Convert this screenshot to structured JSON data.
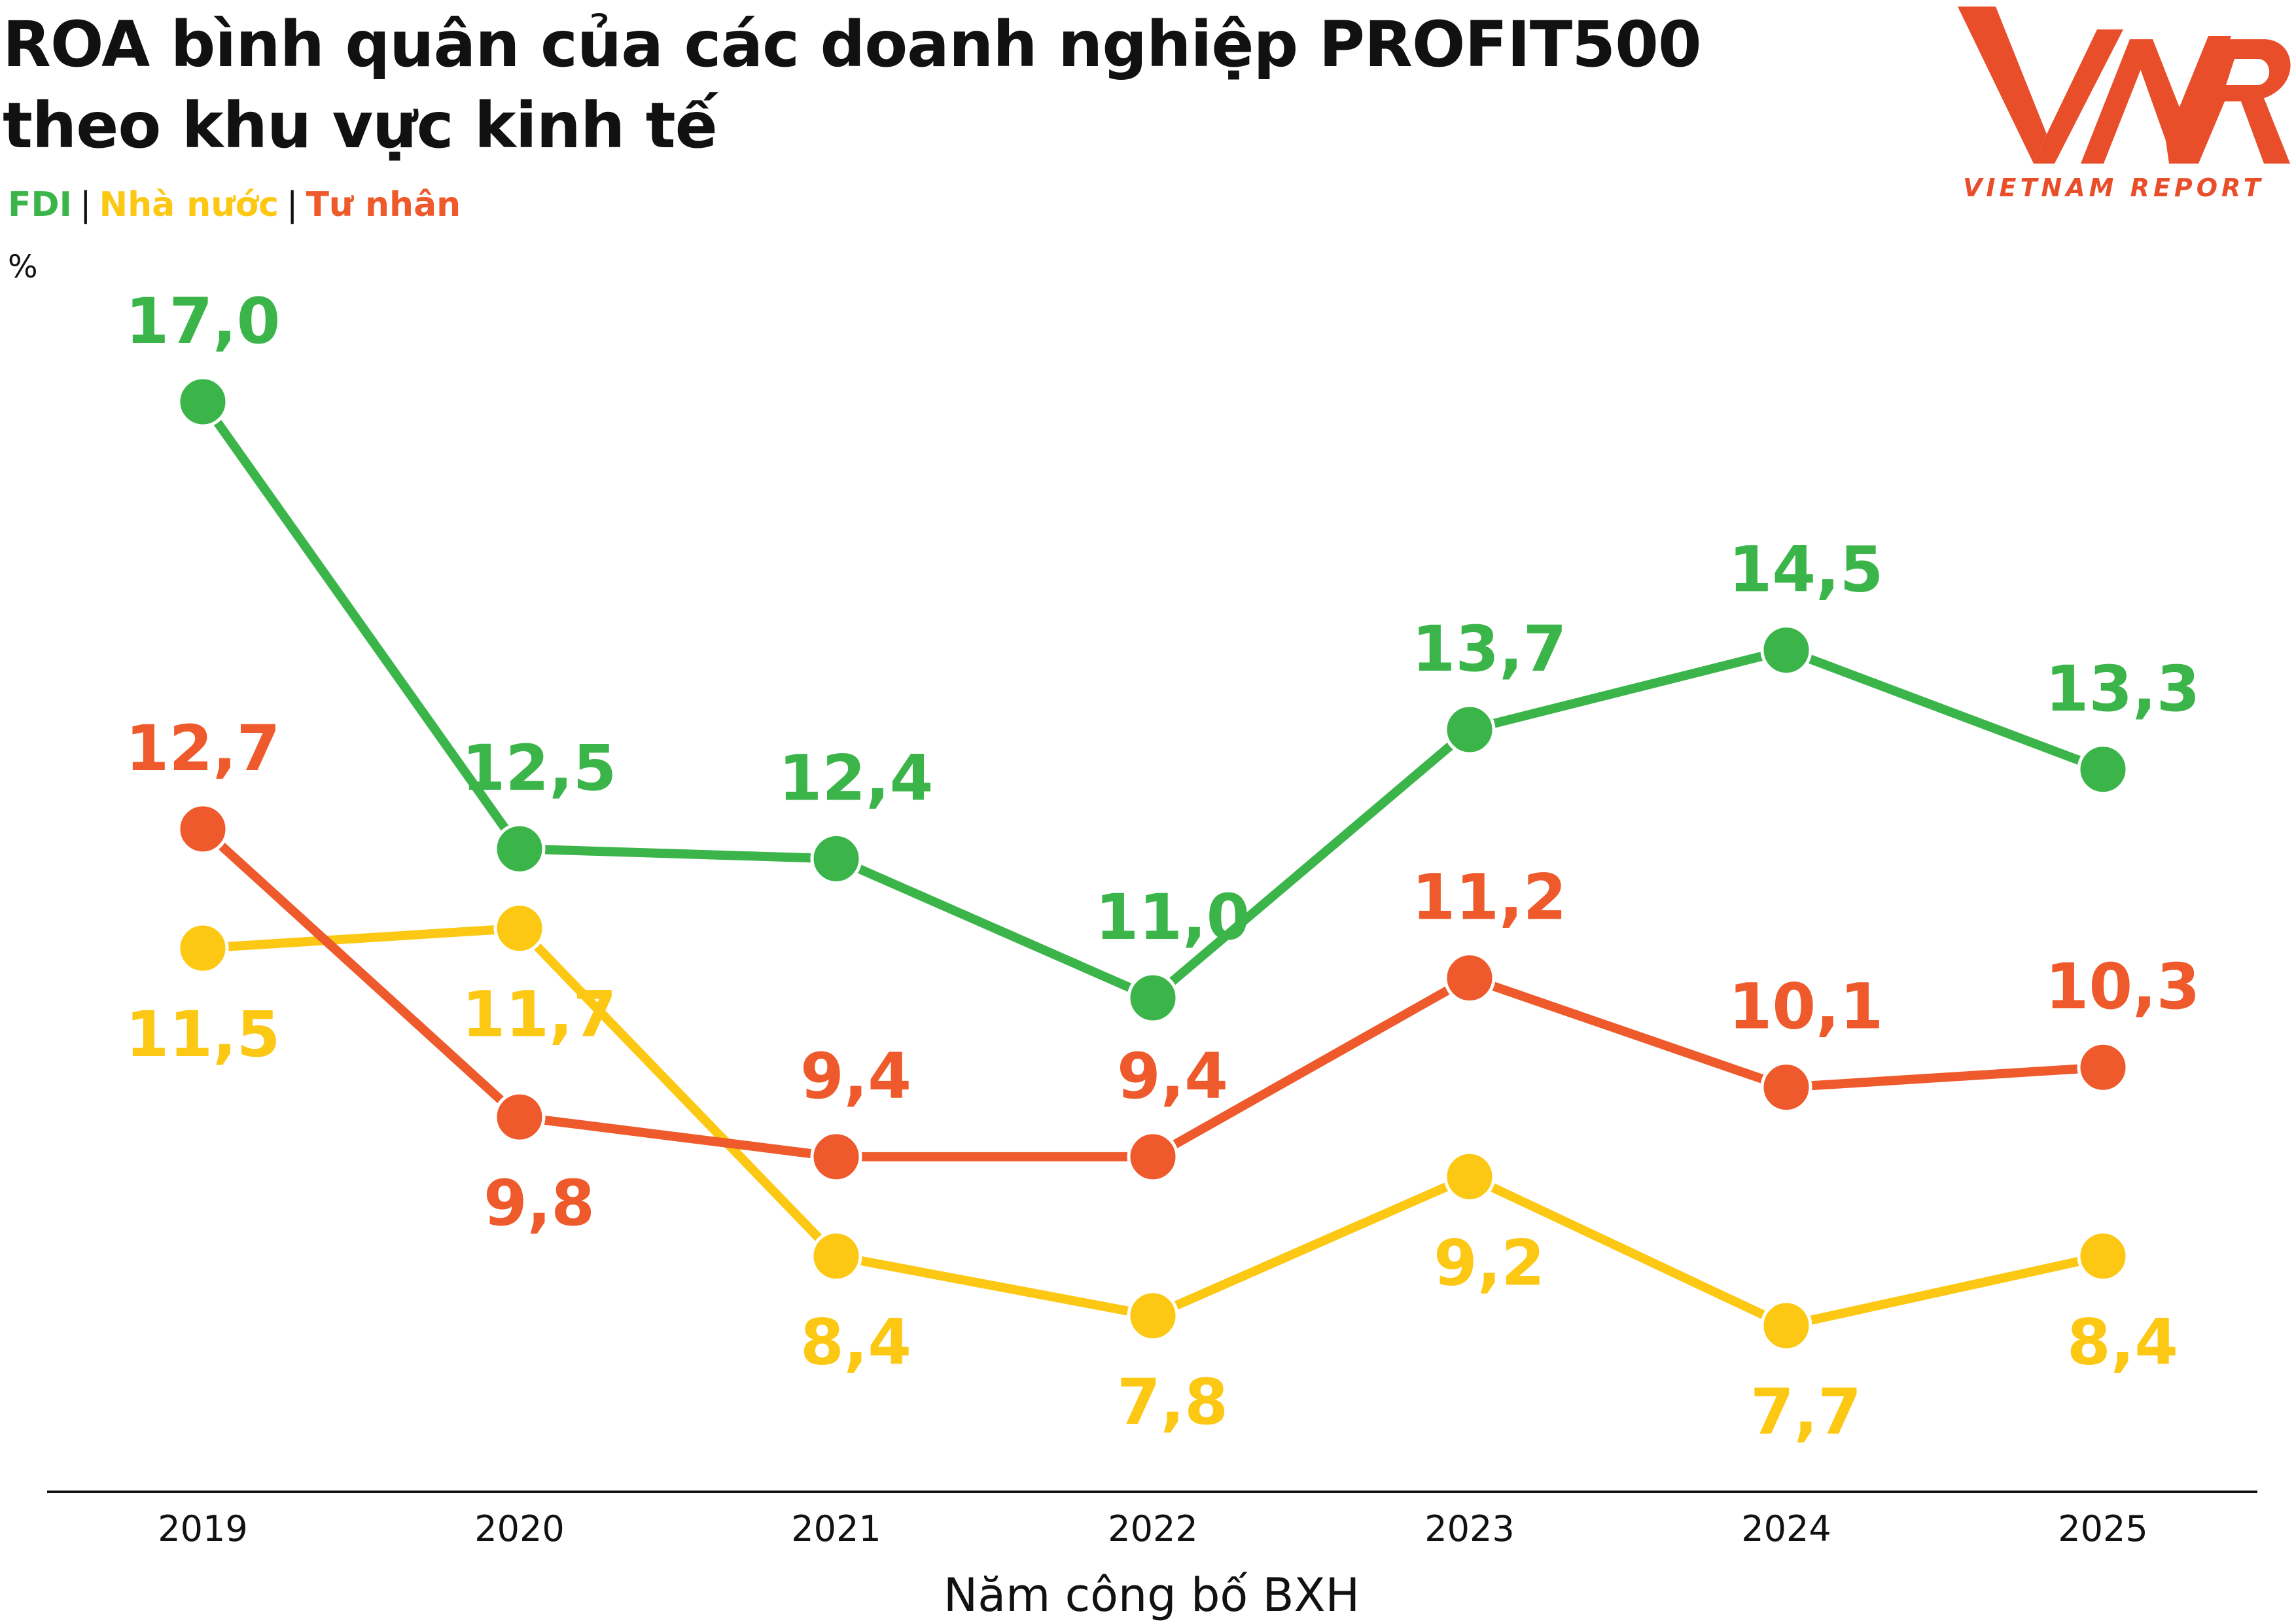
{
  "title_lines": [
    "ROA bình quân của các doanh nghiệp PROFIT500",
    "theo khu vực kinh tế"
  ],
  "legend": {
    "separator": "|",
    "items": [
      {
        "label": "FDI",
        "color": "#3bb54a"
      },
      {
        "label": "Nhà nước",
        "color": "#fcc813"
      },
      {
        "label": "Tư nhân",
        "color": "#ee5a2b"
      }
    ]
  },
  "unit": "%",
  "logo": {
    "mark": "VNR",
    "text": "VIETNAM REPORT",
    "color": "#e94e2a"
  },
  "chart_data": {
    "type": "line",
    "title": "ROA bình quân của các doanh nghiệp PROFIT500 theo khu vực kinh tế",
    "xlabel": "Năm công bố BXH",
    "ylabel": "%",
    "categories": [
      "2019",
      "2020",
      "2021",
      "2022",
      "2023",
      "2024",
      "2025"
    ],
    "ylim": [
      6,
      18
    ],
    "grid": false,
    "legend_position": "top-left",
    "series": [
      {
        "name": "FDI",
        "color": "#3bb54a",
        "values": [
          17.0,
          12.5,
          12.4,
          11.0,
          13.7,
          14.5,
          13.3
        ],
        "labels": [
          "17,0",
          "12,5",
          "12,4",
          "11,0",
          "13,7",
          "14,5",
          "13,3"
        ],
        "label_positions": [
          "above",
          "above",
          "above",
          "above",
          "above",
          "above",
          "above"
        ]
      },
      {
        "name": "Nhà nước",
        "color": "#fcc813",
        "values": [
          11.5,
          11.7,
          8.4,
          7.8,
          9.2,
          7.7,
          8.4
        ],
        "labels": [
          "11,5",
          "11,7",
          "8,4",
          "7,8",
          "9,2",
          "7,7",
          "8,4"
        ],
        "label_positions": [
          "below",
          "below",
          "below",
          "below",
          "below",
          "below",
          "below"
        ]
      },
      {
        "name": "Tư nhân",
        "color": "#ee5a2b",
        "values": [
          12.7,
          9.8,
          9.4,
          9.4,
          11.2,
          10.1,
          10.3
        ],
        "labels": [
          "12,7",
          "9,8",
          "9,4",
          "9,4",
          "11,2",
          "10,1",
          "10,3"
        ],
        "label_positions": [
          "above",
          "below",
          "above",
          "above",
          "above",
          "above",
          "above"
        ]
      }
    ]
  }
}
